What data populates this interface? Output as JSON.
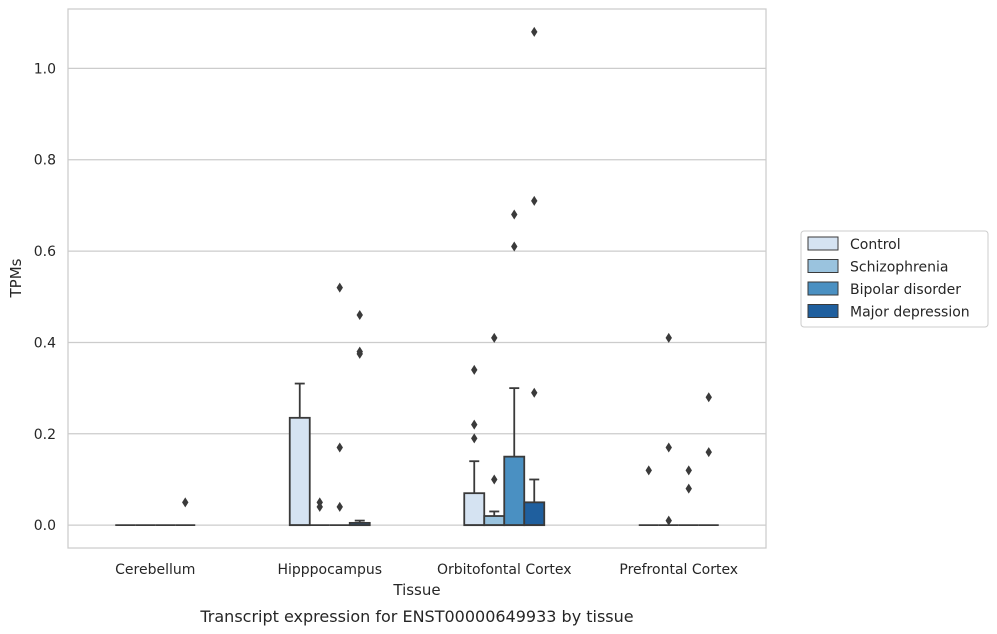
{
  "chart_data": {
    "type": "boxplot",
    "title": "",
    "caption": "Transcript expression for ENST00000649933 by tissue",
    "xlabel": "Tissue",
    "ylabel": "TPMs",
    "ylim": [
      -0.05,
      1.13
    ],
    "yticks": [
      "0.0",
      "0.2",
      "0.4",
      "0.6",
      "0.8",
      "1.0"
    ],
    "grid": "horizontal",
    "legend_position": "right",
    "categories": [
      "Cerebellum",
      "Hipppocampus",
      "Orbitofontal Cortex",
      "Prefrontal Cortex"
    ],
    "series": [
      {
        "name": "Control",
        "color": "#d5e3f2",
        "boxes": [
          {
            "q1": 0,
            "median": 0,
            "q3": 0,
            "whislo": 0,
            "whishi": 0,
            "fliers": []
          },
          {
            "q1": 0,
            "median": 0,
            "q3": 0.235,
            "whislo": 0,
            "whishi": 0.31,
            "fliers": []
          },
          {
            "q1": 0,
            "median": 0,
            "q3": 0.07,
            "whislo": 0,
            "whishi": 0.14,
            "fliers": [
              0.34,
              0.22,
              0.19
            ]
          },
          {
            "q1": 0,
            "median": 0,
            "q3": 0,
            "whislo": 0,
            "whishi": 0,
            "fliers": [
              0.12
            ]
          }
        ]
      },
      {
        "name": "Schizophrenia",
        "color": "#9ac3de",
        "boxes": [
          {
            "q1": 0,
            "median": 0,
            "q3": 0,
            "whislo": 0,
            "whishi": 0,
            "fliers": []
          },
          {
            "q1": 0,
            "median": 0,
            "q3": 0,
            "whislo": 0,
            "whishi": 0,
            "fliers": [
              0.05,
              0.04
            ]
          },
          {
            "q1": 0,
            "median": 0,
            "q3": 0.02,
            "whislo": 0,
            "whishi": 0.03,
            "fliers": [
              0.1,
              0.41
            ]
          },
          {
            "q1": 0,
            "median": 0,
            "q3": 0,
            "whislo": 0,
            "whishi": 0,
            "fliers": [
              0.41,
              0.17,
              0.01
            ]
          }
        ]
      },
      {
        "name": "Bipolar disorder",
        "color": "#4a90c2",
        "boxes": [
          {
            "q1": 0,
            "median": 0,
            "q3": 0,
            "whislo": 0,
            "whishi": 0,
            "fliers": []
          },
          {
            "q1": 0,
            "median": 0,
            "q3": 0,
            "whislo": 0,
            "whishi": 0,
            "fliers": [
              0.52,
              0.17,
              0.04
            ]
          },
          {
            "q1": 0,
            "median": 0,
            "q3": 0.15,
            "whislo": 0,
            "whishi": 0.3,
            "fliers": [
              0.68,
              0.61
            ]
          },
          {
            "q1": 0,
            "median": 0,
            "q3": 0,
            "whislo": 0,
            "whishi": 0,
            "fliers": [
              0.12,
              0.08
            ]
          }
        ]
      },
      {
        "name": "Major depression",
        "color": "#1f5f9e",
        "boxes": [
          {
            "q1": 0,
            "median": 0,
            "q3": 0,
            "whislo": 0,
            "whishi": 0,
            "fliers": [
              0.05
            ]
          },
          {
            "q1": 0,
            "median": 0,
            "q3": 0.005,
            "whislo": 0,
            "whishi": 0.01,
            "fliers": [
              0.46,
              0.38,
              0.375
            ]
          },
          {
            "q1": 0,
            "median": 0,
            "q3": 0.05,
            "whislo": 0,
            "whishi": 0.1,
            "fliers": [
              1.08,
              0.71,
              0.29
            ]
          },
          {
            "q1": 0,
            "median": 0,
            "q3": 0,
            "whislo": 0,
            "whishi": 0,
            "fliers": [
              0.28,
              0.16
            ]
          }
        ]
      }
    ]
  }
}
